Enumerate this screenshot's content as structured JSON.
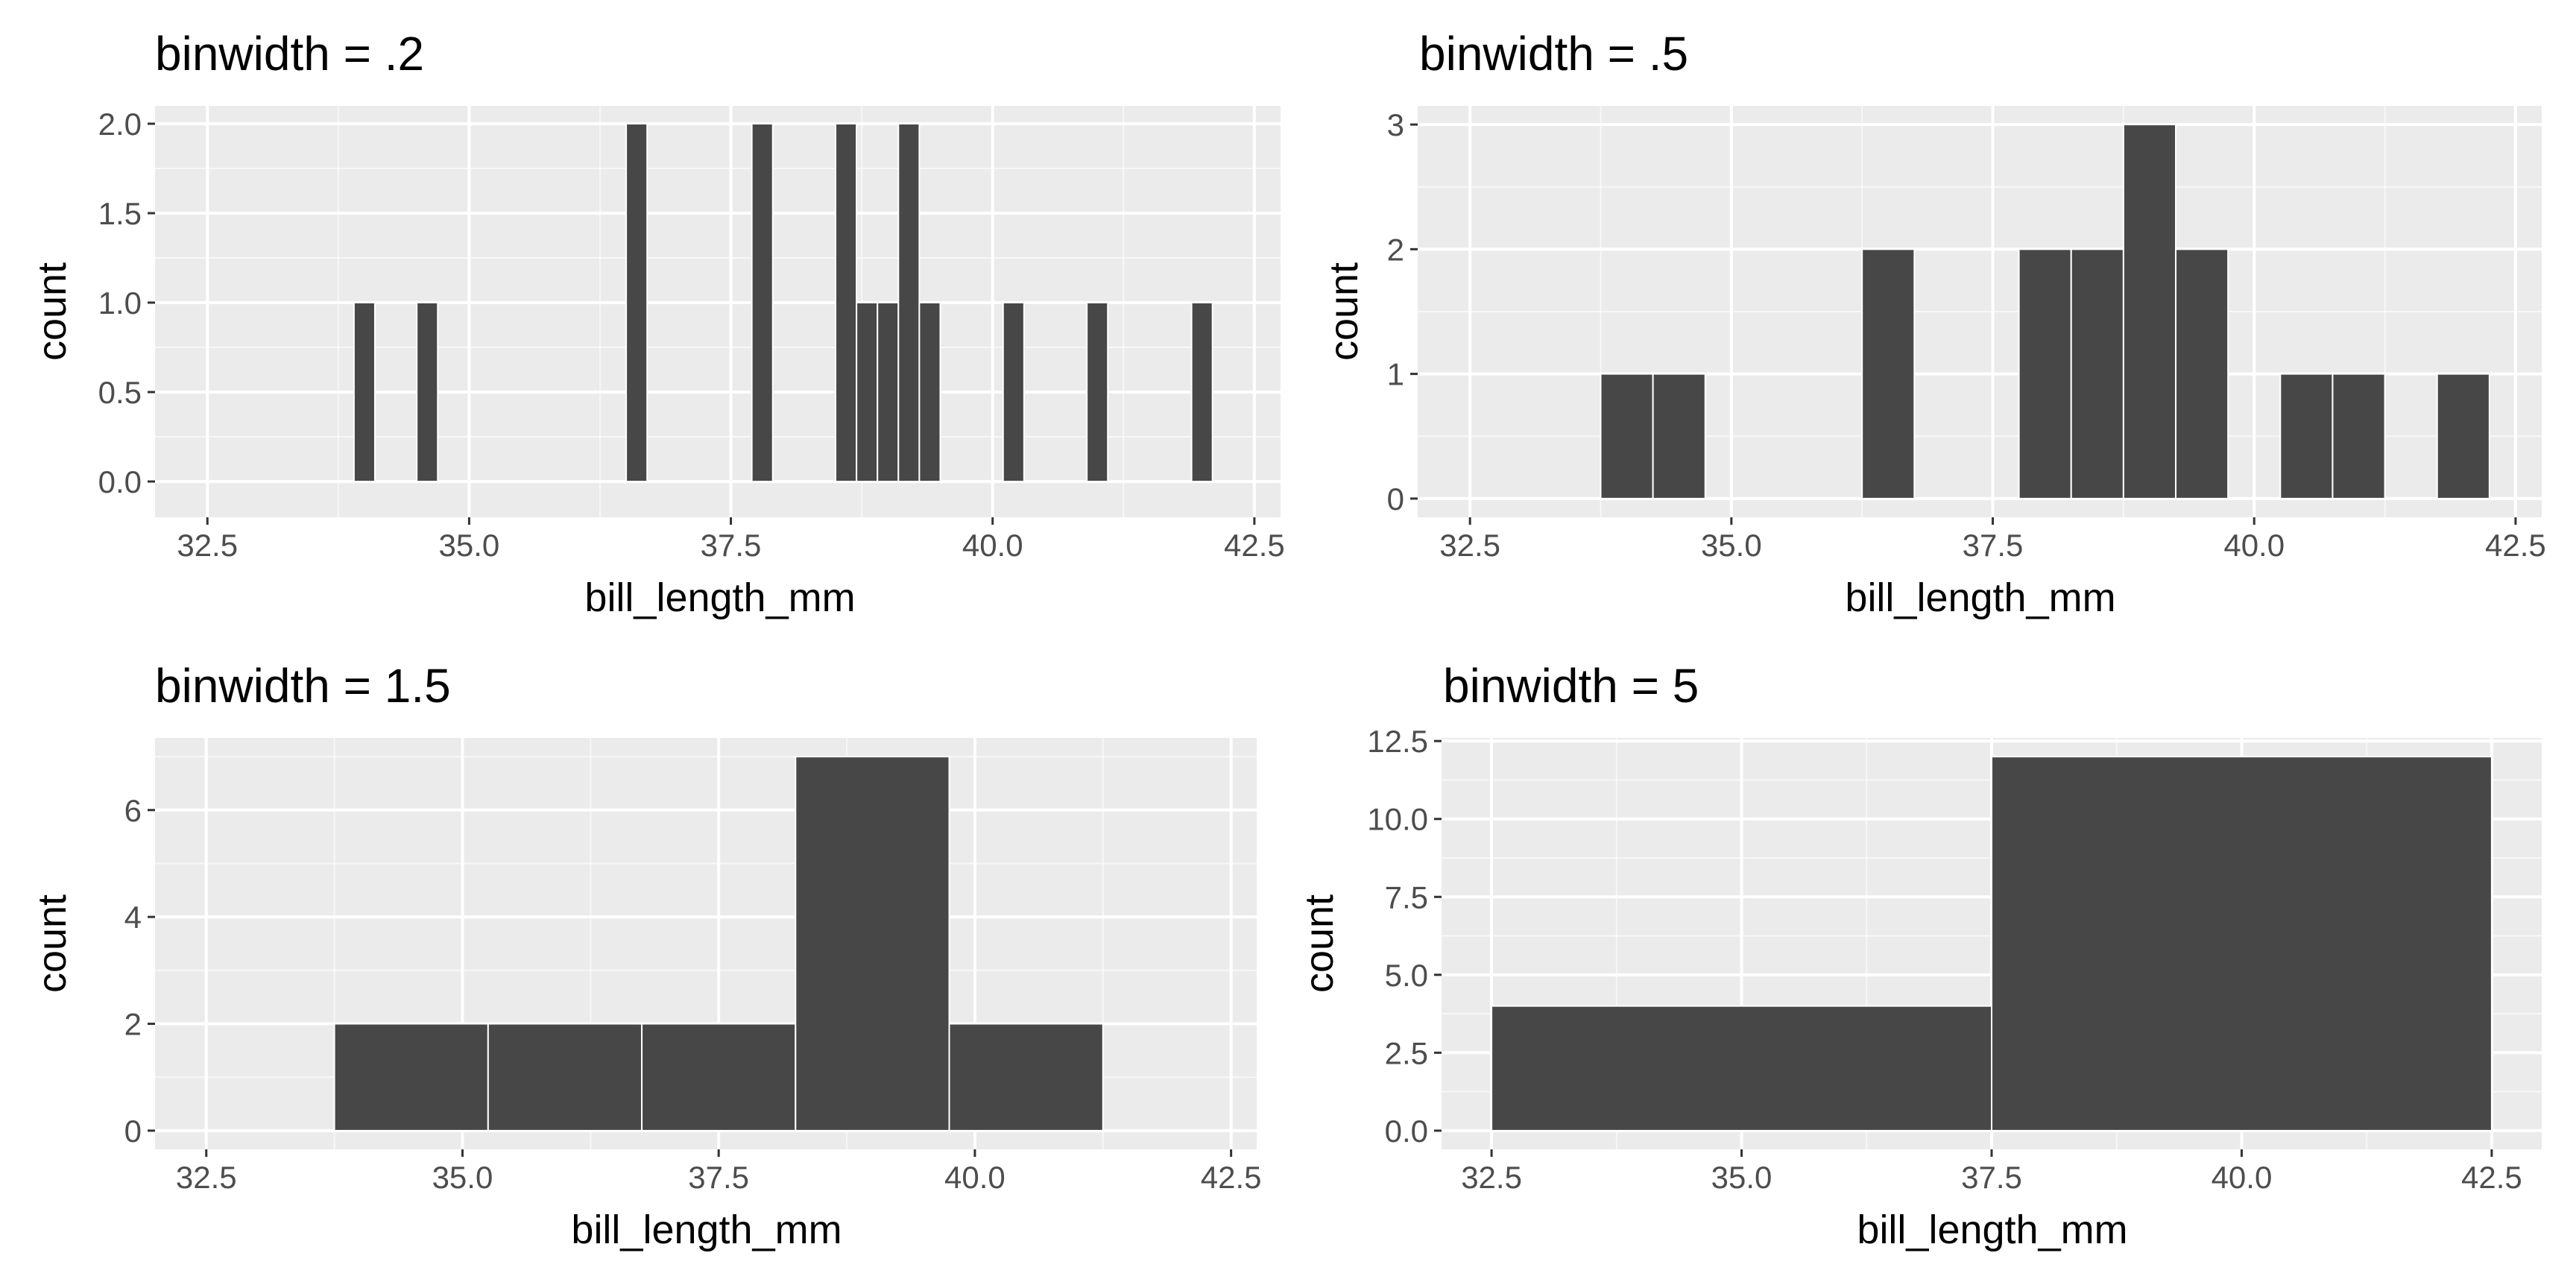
{
  "chart_data": [
    {
      "type": "bar",
      "title": "binwidth = .2",
      "xlabel": "bill_length_mm",
      "ylabel": "count",
      "binwidth": 0.2,
      "xlim": [
        32.0,
        42.75
      ],
      "ylim": [
        -0.2,
        2.1
      ],
      "x_ticks": [
        32.5,
        35.0,
        37.5,
        40.0,
        42.5
      ],
      "x_tick_labels": [
        "32.5",
        "35.0",
        "37.5",
        "40.0",
        "42.5"
      ],
      "y_ticks": [
        0,
        0.5,
        1.0,
        1.5,
        2.0
      ],
      "y_tick_labels": [
        "0.0",
        "0.5",
        "1.0",
        "1.5",
        "2.0"
      ],
      "bins": [
        {
          "x": 34.0,
          "count": 1
        },
        {
          "x": 34.6,
          "count": 1
        },
        {
          "x": 36.6,
          "count": 2
        },
        {
          "x": 37.8,
          "count": 2
        },
        {
          "x": 38.6,
          "count": 2
        },
        {
          "x": 38.8,
          "count": 1
        },
        {
          "x": 39.0,
          "count": 1
        },
        {
          "x": 39.2,
          "count": 2
        },
        {
          "x": 39.4,
          "count": 1
        },
        {
          "x": 40.2,
          "count": 1
        },
        {
          "x": 41.0,
          "count": 1
        },
        {
          "x": 42.0,
          "count": 1
        }
      ]
    },
    {
      "type": "bar",
      "title": "binwidth = .5",
      "xlabel": "bill_length_mm",
      "ylabel": "count",
      "binwidth": 0.5,
      "xlim": [
        32.0,
        42.75
      ],
      "ylim": [
        -0.15,
        3.15
      ],
      "x_ticks": [
        32.5,
        35.0,
        37.5,
        40.0,
        42.5
      ],
      "x_tick_labels": [
        "32.5",
        "35.0",
        "37.5",
        "40.0",
        "42.5"
      ],
      "y_ticks": [
        0,
        1,
        2,
        3
      ],
      "y_tick_labels": [
        "0",
        "1",
        "2",
        "3"
      ],
      "bins": [
        {
          "x": 34.0,
          "count": 1
        },
        {
          "x": 34.5,
          "count": 1
        },
        {
          "x": 36.5,
          "count": 2
        },
        {
          "x": 38.0,
          "count": 2
        },
        {
          "x": 38.5,
          "count": 2
        },
        {
          "x": 39.0,
          "count": 3
        },
        {
          "x": 39.5,
          "count": 2
        },
        {
          "x": 40.5,
          "count": 1
        },
        {
          "x": 41.0,
          "count": 1
        },
        {
          "x": 42.0,
          "count": 1
        }
      ]
    },
    {
      "type": "bar",
      "title": "binwidth = 1.5",
      "xlabel": "bill_length_mm",
      "ylabel": "count",
      "binwidth": 1.5,
      "xlim": [
        32.0,
        42.75
      ],
      "ylim": [
        -0.35,
        7.35
      ],
      "x_ticks": [
        32.5,
        35.0,
        37.5,
        40.0,
        42.5
      ],
      "x_tick_labels": [
        "32.5",
        "35.0",
        "37.5",
        "40.0",
        "42.5"
      ],
      "y_ticks": [
        0,
        2,
        4,
        6
      ],
      "y_tick_labels": [
        "0",
        "2",
        "4",
        "6"
      ],
      "bins": [
        {
          "x": 34.5,
          "count": 2
        },
        {
          "x": 36.0,
          "count": 2
        },
        {
          "x": 37.5,
          "count": 2
        },
        {
          "x": 39.0,
          "count": 7
        },
        {
          "x": 40.5,
          "count": 2
        }
      ]
    },
    {
      "type": "bar",
      "title": "binwidth = 5",
      "xlabel": "bill_length_mm",
      "ylabel": "count",
      "binwidth": 5,
      "xlim": [
        32.0,
        43.0
      ],
      "ylim": [
        -0.6,
        12.6
      ],
      "x_ticks": [
        32.5,
        35.0,
        37.5,
        40.0,
        42.5
      ],
      "x_tick_labels": [
        "32.5",
        "35.0",
        "37.5",
        "40.0",
        "42.5"
      ],
      "y_ticks": [
        0,
        2.5,
        5.0,
        7.5,
        10.0,
        12.5
      ],
      "y_tick_labels": [
        "0.0",
        "2.5",
        "5.0",
        "7.5",
        "10.0",
        "12.5"
      ],
      "bins": [
        {
          "x": 35.0,
          "count": 4
        },
        {
          "x": 40.0,
          "count": 12
        }
      ]
    }
  ],
  "colors": {
    "panel_background": "#ebebeb",
    "grid_major": "#ffffff",
    "bar_fill": "#474747",
    "bar_outline": "#ffffff",
    "tick_text": "#4d4d4d",
    "tick_mark": "#333333",
    "title_text": "#000000"
  }
}
